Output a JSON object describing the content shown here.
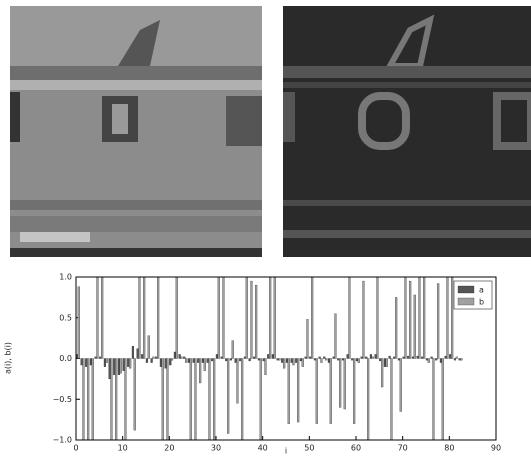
{
  "chart_data": {
    "type": "bar",
    "x_label": "i",
    "y_label": "a(i), b(i)",
    "x": [
      0,
      1,
      2,
      3,
      4,
      5,
      6,
      7,
      8,
      9,
      10,
      11,
      12,
      13,
      14,
      15,
      16,
      17,
      18,
      19,
      20,
      21,
      22,
      23,
      24,
      25,
      26,
      27,
      28,
      29,
      30,
      31,
      32,
      33,
      34,
      35,
      36,
      37,
      38,
      39,
      40,
      41,
      42,
      43,
      44,
      45,
      46,
      47,
      48,
      49,
      50,
      51,
      52,
      53,
      54,
      55,
      56,
      57,
      58,
      59,
      60,
      61,
      62,
      63,
      64,
      65,
      66,
      67,
      68,
      69,
      70,
      71,
      72,
      73,
      74,
      75,
      76,
      77,
      78,
      79,
      80,
      81,
      82
    ],
    "series": [
      {
        "name": "a",
        "color": "#555555",
        "values": [
          0.05,
          -0.08,
          -0.1,
          -0.08,
          0.02,
          0.02,
          -0.1,
          -0.25,
          -0.2,
          -0.2,
          -0.15,
          -0.1,
          0.15,
          0.12,
          0.05,
          -0.05,
          -0.05,
          0.02,
          -0.1,
          -0.12,
          -0.08,
          0.08,
          0.05,
          0.02,
          -0.05,
          -0.05,
          -0.05,
          -0.05,
          -0.05,
          -0.03,
          0.05,
          0.02,
          -0.03,
          -0.02,
          -0.05,
          -0.03,
          0.02,
          -0.03,
          0.02,
          -0.02,
          -0.03,
          0.05,
          0.05,
          -0.02,
          -0.05,
          -0.05,
          -0.05,
          -0.05,
          -0.03,
          0.02,
          0.02,
          -0.02,
          0.02,
          0.02,
          -0.05,
          0.02,
          -0.02,
          -0.02,
          0.05,
          -0.02,
          -0.03,
          0.02,
          0.02,
          0.05,
          0.05,
          -0.03,
          -0.1,
          0.03,
          0.02,
          -0.02,
          0.02,
          0.03,
          0.02,
          0.03,
          0.02,
          -0.02,
          0.02,
          -0.02,
          -0.05,
          0.03,
          0.05,
          -0.02,
          -0.02
        ]
      },
      {
        "name": "b",
        "color": "#a0a0a0",
        "values": [
          0.88,
          -1.0,
          -1.0,
          -1.0,
          1.0,
          1.0,
          -0.05,
          -1.0,
          -1.0,
          -0.18,
          -1.0,
          -0.12,
          -0.88,
          1.0,
          1.0,
          0.28,
          0.02,
          1.0,
          -1.0,
          -1.0,
          -0.02,
          1.0,
          0.02,
          -0.05,
          -1.0,
          -1.0,
          -0.3,
          -0.15,
          -1.0,
          -1.0,
          1.0,
          1.0,
          -0.92,
          0.22,
          -0.55,
          -1.0,
          1.0,
          0.95,
          0.9,
          -1.0,
          -0.2,
          1.0,
          1.0,
          -0.02,
          -0.12,
          -0.8,
          -0.08,
          -0.78,
          -0.1,
          0.48,
          1.0,
          -0.8,
          -0.05,
          -0.02,
          -0.8,
          0.55,
          -0.6,
          -0.62,
          1.0,
          -0.8,
          -0.05,
          0.95,
          -1.0,
          0.02,
          1.0,
          -0.35,
          -0.1,
          -1.0,
          0.75,
          -0.65,
          1.0,
          0.95,
          0.78,
          1.0,
          1.0,
          -0.05,
          -1.0,
          0.92,
          -1.0,
          1.0,
          1.0,
          0.02,
          -0.02
        ]
      }
    ],
    "xlim": [
      0,
      90
    ],
    "xticks": [
      0,
      10,
      20,
      30,
      40,
      50,
      60,
      70,
      80,
      90
    ],
    "ylim": [
      -1,
      1
    ],
    "yticks": [
      {
        "value": -1,
        "label": "−1.0"
      },
      {
        "value": -0.5,
        "label": "−0.5"
      },
      {
        "value": 0,
        "label": "0.0"
      },
      {
        "value": 0.5,
        "label": "0.5"
      },
      {
        "value": 1,
        "label": "1.0"
      }
    ],
    "legend": "upper right"
  }
}
